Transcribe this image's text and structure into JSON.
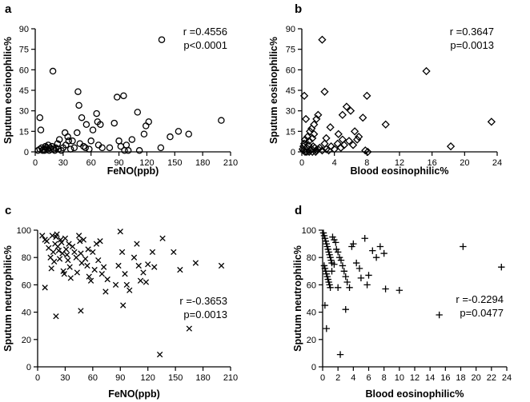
{
  "chart_data": [
    {
      "panel": "a",
      "type": "scatter",
      "marker": "circle",
      "xlabel": "FeNO(ppb)",
      "ylabel": "Sputum eosinophilic%",
      "xlim": [
        0,
        210
      ],
      "xticks": [
        0,
        30,
        60,
        90,
        120,
        150,
        180,
        210
      ],
      "ylim": [
        0,
        90
      ],
      "yticks": [
        0,
        15,
        30,
        45,
        60,
        75,
        90
      ],
      "stat_r": "r =0.4556",
      "stat_p": "p<0.0001",
      "stat_anchor": "top-right",
      "points": [
        [
          136,
          82
        ],
        [
          19,
          59
        ],
        [
          5,
          25
        ],
        [
          6,
          16
        ],
        [
          3,
          1
        ],
        [
          5,
          2
        ],
        [
          7,
          3
        ],
        [
          8,
          1
        ],
        [
          9,
          2
        ],
        [
          10,
          1
        ],
        [
          11,
          4
        ],
        [
          12,
          3
        ],
        [
          13,
          2
        ],
        [
          14,
          5
        ],
        [
          15,
          1
        ],
        [
          16,
          3
        ],
        [
          17,
          2
        ],
        [
          18,
          4
        ],
        [
          20,
          2
        ],
        [
          21,
          1
        ],
        [
          22,
          3
        ],
        [
          24,
          6
        ],
        [
          25,
          2
        ],
        [
          26,
          9
        ],
        [
          28,
          1
        ],
        [
          30,
          3
        ],
        [
          32,
          14
        ],
        [
          33,
          5
        ],
        [
          35,
          11
        ],
        [
          36,
          8
        ],
        [
          38,
          2
        ],
        [
          40,
          8
        ],
        [
          42,
          3
        ],
        [
          45,
          14
        ],
        [
          46,
          44
        ],
        [
          47,
          34
        ],
        [
          48,
          6
        ],
        [
          50,
          25
        ],
        [
          52,
          4
        ],
        [
          54,
          3
        ],
        [
          55,
          20
        ],
        [
          58,
          2
        ],
        [
          60,
          8
        ],
        [
          62,
          16
        ],
        [
          66,
          28
        ],
        [
          67,
          22
        ],
        [
          68,
          5
        ],
        [
          70,
          20
        ],
        [
          72,
          3
        ],
        [
          80,
          3
        ],
        [
          85,
          21
        ],
        [
          88,
          40
        ],
        [
          90,
          8
        ],
        [
          92,
          4
        ],
        [
          95,
          41
        ],
        [
          96,
          1
        ],
        [
          98,
          5
        ],
        [
          100,
          1
        ],
        [
          104,
          9
        ],
        [
          110,
          29
        ],
        [
          112,
          1
        ],
        [
          117,
          13
        ],
        [
          119,
          19
        ],
        [
          122,
          22
        ],
        [
          135,
          3
        ],
        [
          145,
          11
        ],
        [
          154,
          15
        ],
        [
          165,
          13
        ],
        [
          200,
          23
        ]
      ]
    },
    {
      "panel": "b",
      "type": "scatter",
      "marker": "diamond",
      "xlabel": "Blood eosinophilic%",
      "ylabel": "Sputum eosinophilic%",
      "xlim": [
        0,
        24
      ],
      "xticks": [
        0,
        4,
        8,
        12,
        16,
        20,
        24
      ],
      "ylim": [
        0,
        90
      ],
      "yticks": [
        0,
        15,
        30,
        45,
        60,
        75,
        90
      ],
      "stat_r": "r =0.3647",
      "stat_p": "p=0.0013",
      "stat_anchor": "top-right",
      "points": [
        [
          2.5,
          82
        ],
        [
          15.3,
          59
        ],
        [
          23.3,
          22
        ],
        [
          18.3,
          4
        ],
        [
          10.3,
          20
        ],
        [
          8,
          41
        ],
        [
          7.5,
          25
        ],
        [
          5.5,
          33
        ],
        [
          6,
          30
        ],
        [
          5,
          27
        ],
        [
          6.5,
          15
        ],
        [
          7,
          11
        ],
        [
          5,
          9
        ],
        [
          4.5,
          13
        ],
        [
          3.5,
          18
        ],
        [
          3,
          10
        ],
        [
          2.8,
          44
        ],
        [
          2,
          27
        ],
        [
          1.8,
          24
        ],
        [
          1.5,
          20
        ],
        [
          1.2,
          17
        ],
        [
          1,
          15
        ],
        [
          1.5,
          13
        ],
        [
          1.3,
          10
        ],
        [
          0.9,
          8
        ],
        [
          0.7,
          11
        ],
        [
          0.5,
          24
        ],
        [
          0.3,
          41
        ],
        [
          0.4,
          9
        ],
        [
          0.3,
          6
        ],
        [
          0.2,
          4
        ],
        [
          0.1,
          2
        ],
        [
          0.2,
          1
        ],
        [
          0.4,
          0
        ],
        [
          0.6,
          3
        ],
        [
          0.8,
          5
        ],
        [
          1,
          1
        ],
        [
          1.2,
          2
        ],
        [
          1.4,
          4
        ],
        [
          1.6,
          3
        ],
        [
          1.8,
          1
        ],
        [
          2,
          2
        ],
        [
          2.2,
          3
        ],
        [
          2.5,
          1
        ],
        [
          2.8,
          6
        ],
        [
          3,
          2
        ],
        [
          3.3,
          1
        ],
        [
          3.6,
          4
        ],
        [
          4,
          2
        ],
        [
          4.4,
          6
        ],
        [
          4.8,
          3
        ],
        [
          5.2,
          5
        ],
        [
          5.8,
          8
        ],
        [
          6.3,
          5
        ],
        [
          6.8,
          9
        ],
        [
          7.8,
          1
        ],
        [
          8.1,
          0
        ],
        [
          0.6,
          0
        ],
        [
          0.9,
          0
        ],
        [
          1.3,
          0
        ],
        [
          1.7,
          0
        ]
      ]
    },
    {
      "panel": "c",
      "type": "scatter",
      "marker": "x",
      "xlabel": "FeNO(ppb)",
      "ylabel": "Sputum neutrophilic%",
      "xlim": [
        0,
        210
      ],
      "xticks": [
        0,
        30,
        60,
        90,
        120,
        150,
        180,
        210
      ],
      "ylim": [
        0,
        100
      ],
      "yticks": [
        0,
        20,
        40,
        60,
        80,
        100
      ],
      "stat_r": "r =-0.3653",
      "stat_p": "p=0.0013",
      "stat_anchor": "middle-right",
      "points": [
        [
          5,
          96
        ],
        [
          8,
          93
        ],
        [
          10,
          92
        ],
        [
          12,
          87
        ],
        [
          14,
          80
        ],
        [
          15,
          72
        ],
        [
          16,
          96
        ],
        [
          17,
          84
        ],
        [
          18,
          77
        ],
        [
          19,
          90
        ],
        [
          20,
          95
        ],
        [
          21,
          97
        ],
        [
          22,
          88
        ],
        [
          23,
          85
        ],
        [
          24,
          79
        ],
        [
          25,
          93
        ],
        [
          26,
          91
        ],
        [
          27,
          83
        ],
        [
          28,
          70
        ],
        [
          29,
          68
        ],
        [
          30,
          94
        ],
        [
          31,
          86
        ],
        [
          32,
          82
        ],
        [
          33,
          78
        ],
        [
          34,
          90
        ],
        [
          35,
          73
        ],
        [
          36,
          65
        ],
        [
          38,
          88
        ],
        [
          40,
          84
        ],
        [
          42,
          80
        ],
        [
          43,
          69
        ],
        [
          45,
          96
        ],
        [
          46,
          92
        ],
        [
          47,
          83
        ],
        [
          48,
          76
        ],
        [
          50,
          93
        ],
        [
          52,
          79
        ],
        [
          54,
          74
        ],
        [
          55,
          86
        ],
        [
          56,
          66
        ],
        [
          58,
          63
        ],
        [
          60,
          84
        ],
        [
          62,
          71
        ],
        [
          64,
          90
        ],
        [
          66,
          78
        ],
        [
          68,
          92
        ],
        [
          70,
          68
        ],
        [
          72,
          73
        ],
        [
          74,
          55
        ],
        [
          76,
          64
        ],
        [
          85,
          60
        ],
        [
          88,
          74
        ],
        [
          90,
          99
        ],
        [
          92,
          84
        ],
        [
          95,
          68
        ],
        [
          97,
          60
        ],
        [
          100,
          56
        ],
        [
          105,
          80
        ],
        [
          108,
          90
        ],
        [
          110,
          74
        ],
        [
          112,
          63
        ],
        [
          115,
          69
        ],
        [
          118,
          62
        ],
        [
          120,
          75
        ],
        [
          125,
          84
        ],
        [
          127,
          73
        ],
        [
          133,
          9
        ],
        [
          136,
          94
        ],
        [
          148,
          84
        ],
        [
          155,
          71
        ],
        [
          165,
          28
        ],
        [
          172,
          76
        ],
        [
          200,
          74
        ],
        [
          8,
          58
        ],
        [
          20,
          37
        ],
        [
          47,
          41
        ],
        [
          93,
          45
        ]
      ]
    },
    {
      "panel": "d",
      "type": "scatter",
      "marker": "plus",
      "xlabel": "Blood eosinophilic%",
      "ylabel": "Sputum neutrophilic%",
      "xlim": [
        0,
        24
      ],
      "xticks": [
        0,
        2,
        4,
        6,
        8,
        10,
        12,
        14,
        16,
        18,
        20,
        22,
        24
      ],
      "ylim": [
        0,
        100
      ],
      "yticks": [
        0,
        20,
        40,
        60,
        80,
        100
      ],
      "stat_r": "r =-0.2294",
      "stat_p": "p=0.0477",
      "stat_anchor": "middle-right",
      "points": [
        [
          0.1,
          98
        ],
        [
          0.2,
          96
        ],
        [
          0.3,
          94
        ],
        [
          0.4,
          92
        ],
        [
          0.5,
          90
        ],
        [
          0.6,
          88
        ],
        [
          0.7,
          86
        ],
        [
          0.8,
          84
        ],
        [
          0.9,
          82
        ],
        [
          1,
          80
        ],
        [
          1.1,
          78
        ],
        [
          1.2,
          76
        ],
        [
          0.2,
          74
        ],
        [
          0.3,
          72
        ],
        [
          0.4,
          70
        ],
        [
          0.5,
          68
        ],
        [
          0.6,
          66
        ],
        [
          0.7,
          64
        ],
        [
          0.8,
          62
        ],
        [
          0.9,
          60
        ],
        [
          1,
          58
        ],
        [
          0.3,
          45
        ],
        [
          0.5,
          28
        ],
        [
          1.3,
          95
        ],
        [
          1.5,
          93
        ],
        [
          1.7,
          91
        ],
        [
          1.8,
          86
        ],
        [
          2,
          84
        ],
        [
          2.2,
          80
        ],
        [
          2.4,
          78
        ],
        [
          2.6,
          74
        ],
        [
          2.8,
          70
        ],
        [
          3,
          66
        ],
        [
          3.2,
          62
        ],
        [
          3.5,
          58
        ],
        [
          3.8,
          88
        ],
        [
          4,
          90
        ],
        [
          4.4,
          76
        ],
        [
          4.8,
          72
        ],
        [
          5,
          65
        ],
        [
          5.5,
          94
        ],
        [
          5.8,
          60
        ],
        [
          6,
          67
        ],
        [
          6.5,
          85
        ],
        [
          7,
          80
        ],
        [
          7.5,
          88
        ],
        [
          8,
          83
        ],
        [
          8.2,
          57
        ],
        [
          10,
          56
        ],
        [
          15.2,
          38
        ],
        [
          18.3,
          88
        ],
        [
          23.3,
          73
        ],
        [
          2,
          58
        ],
        [
          2.3,
          9
        ],
        [
          3,
          42
        ],
        [
          1.5,
          75
        ],
        [
          1.2,
          70
        ]
      ]
    }
  ]
}
